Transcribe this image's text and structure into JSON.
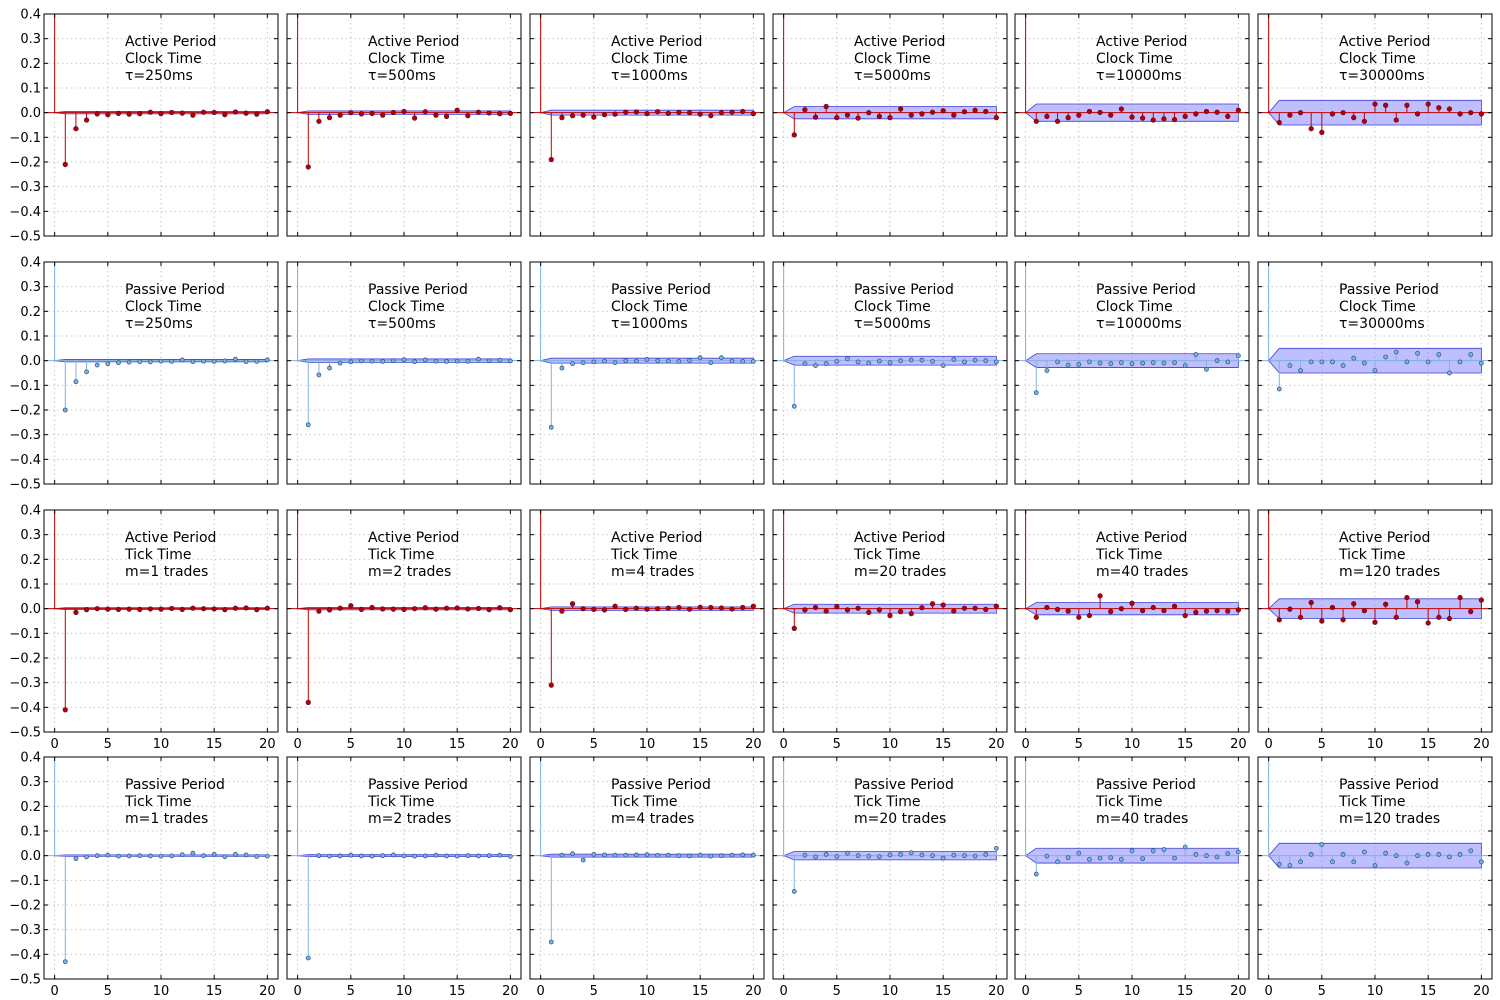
{
  "colors": {
    "active": "#c00000",
    "active_marker": "#b00010",
    "passive": "#7fb2e0",
    "passive_marker_edge": "#2f5f8f",
    "band_fill": "#8080ff",
    "band_edge": "#4040d0",
    "grid": "#c8c8c8",
    "frame": "#000000"
  },
  "chart_data": {
    "type": "stem",
    "layout": "4x6 grid of autocorrelation plots",
    "x_ticks": [
      "0",
      "5",
      "10",
      "15",
      "20"
    ],
    "y_ticks": [
      "0.4",
      "0.3",
      "0.2",
      "0.1",
      "0.0",
      "−0.1",
      "−0.2",
      "−0.3",
      "−0.4",
      "−0.5"
    ],
    "xlim": [
      -1,
      21
    ],
    "ylim": [
      -0.5,
      0.4
    ],
    "rows": [
      {
        "period": "Active",
        "color": "active",
        "panels": [
          {
            "lines": [
              "Active Period",
              "Clock Time",
              "τ=250ms"
            ],
            "band": 0.005,
            "values": [
              -0.21,
              -0.065,
              -0.03,
              -0.005,
              -0.008,
              -0.003,
              -0.006,
              -0.004,
              0.002,
              -0.004,
              0.001,
              -0.002,
              -0.01,
              0.002,
              0.001,
              -0.008,
              0.003,
              -0.002,
              -0.006,
              0.004
            ]
          },
          {
            "lines": [
              "Active Period",
              "Clock Time",
              "τ=500ms"
            ],
            "band": 0.007,
            "values": [
              -0.22,
              -0.035,
              -0.02,
              -0.01,
              0.0,
              -0.005,
              -0.003,
              -0.01,
              0.001,
              0.005,
              -0.022,
              0.004,
              -0.01,
              -0.015,
              0.01,
              -0.012,
              0.002,
              -0.001,
              -0.004,
              -0.003
            ]
          },
          {
            "lines": [
              "Active Period",
              "Clock Time",
              "τ=1000ms"
            ],
            "band": 0.01,
            "values": [
              -0.19,
              -0.02,
              -0.012,
              -0.01,
              -0.018,
              -0.008,
              -0.006,
              0.002,
              0.003,
              -0.004,
              0.004,
              -0.003,
              0.001,
              0.0,
              -0.006,
              -0.012,
              0.0,
              0.002,
              0.005,
              -0.004
            ]
          },
          {
            "lines": [
              "Active Period",
              "Clock Time",
              "τ=5000ms"
            ],
            "band": 0.025,
            "values": [
              -0.09,
              0.012,
              -0.018,
              0.025,
              -0.02,
              -0.01,
              -0.022,
              0.0,
              -0.015,
              -0.02,
              0.015,
              -0.01,
              -0.005,
              0.002,
              0.008,
              -0.01,
              0.004,
              0.01,
              0.005,
              -0.02
            ]
          },
          {
            "lines": [
              "Active Period",
              "Clock Time",
              "τ=10000ms"
            ],
            "band": 0.035,
            "values": [
              -0.035,
              -0.015,
              -0.035,
              -0.02,
              -0.01,
              0.005,
              0.001,
              -0.01,
              0.015,
              -0.018,
              -0.022,
              -0.03,
              -0.025,
              -0.028,
              -0.015,
              -0.005,
              0.005,
              0.002,
              -0.015,
              0.01
            ]
          },
          {
            "lines": [
              "Active Period",
              "Clock Time",
              "τ=30000ms"
            ],
            "band": 0.05,
            "values": [
              -0.04,
              -0.01,
              0.0,
              -0.065,
              -0.08,
              -0.005,
              0.0,
              -0.02,
              -0.035,
              0.035,
              0.03,
              -0.03,
              0.03,
              -0.005,
              0.035,
              0.02,
              0.015,
              -0.005,
              0.0,
              -0.005
            ]
          }
        ]
      },
      {
        "period": "Passive",
        "color": "passive",
        "panels": [
          {
            "lines": [
              "Passive Period",
              "Clock Time",
              "τ=250ms"
            ],
            "band": 0.005,
            "values": [
              -0.2,
              -0.085,
              -0.045,
              -0.018,
              -0.012,
              -0.008,
              -0.006,
              -0.004,
              -0.005,
              -0.002,
              -0.003,
              0.003,
              -0.004,
              -0.002,
              -0.003,
              -0.001,
              0.006,
              -0.004,
              -0.003,
              0.003
            ]
          },
          {
            "lines": [
              "Passive Period",
              "Clock Time",
              "τ=500ms"
            ],
            "band": 0.007,
            "values": [
              -0.26,
              -0.058,
              -0.03,
              -0.01,
              -0.005,
              -0.001,
              -0.002,
              -0.003,
              0.0,
              0.004,
              -0.004,
              0.003,
              -0.002,
              -0.003,
              -0.002,
              -0.003,
              0.006,
              0.0,
              0.002,
              -0.001
            ]
          },
          {
            "lines": [
              "Passive Period",
              "Clock Time",
              "τ=1000ms"
            ],
            "band": 0.01,
            "values": [
              -0.27,
              -0.03,
              -0.012,
              -0.008,
              -0.005,
              -0.002,
              -0.008,
              0.0,
              -0.002,
              0.005,
              0.0,
              -0.002,
              -0.003,
              0.001,
              0.012,
              -0.008,
              0.012,
              -0.002,
              -0.003,
              -0.003
            ]
          },
          {
            "lines": [
              "Passive Period",
              "Clock Time",
              "τ=5000ms"
            ],
            "band": 0.018,
            "values": [
              -0.185,
              -0.012,
              -0.02,
              -0.012,
              -0.003,
              0.008,
              -0.005,
              -0.01,
              -0.002,
              -0.008,
              0.0,
              0.003,
              0.002,
              -0.003,
              -0.02,
              0.005,
              -0.005,
              0.002,
              0.0,
              -0.005
            ]
          },
          {
            "lines": [
              "Passive Period",
              "Clock Time",
              "τ=10000ms"
            ],
            "band": 0.028,
            "values": [
              -0.13,
              -0.04,
              -0.005,
              -0.018,
              -0.015,
              -0.005,
              -0.01,
              -0.012,
              -0.008,
              -0.012,
              -0.01,
              -0.008,
              -0.01,
              -0.008,
              -0.02,
              0.025,
              -0.035,
              0.0,
              -0.005,
              0.02
            ]
          },
          {
            "lines": [
              "Passive Period",
              "Clock Time",
              "τ=30000ms"
            ],
            "band": 0.05,
            "values": [
              -0.115,
              -0.02,
              -0.04,
              -0.005,
              -0.005,
              -0.005,
              -0.02,
              0.01,
              -0.01,
              -0.04,
              0.015,
              0.035,
              -0.005,
              0.03,
              -0.005,
              0.025,
              -0.05,
              -0.005,
              0.025,
              -0.01
            ]
          }
        ]
      },
      {
        "period": "Active",
        "color": "active",
        "panels": [
          {
            "lines": [
              "Active Period",
              "Tick Time",
              "m=1 trades"
            ],
            "band": 0.004,
            "values": [
              -0.41,
              -0.015,
              -0.004,
              0.0,
              -0.002,
              -0.003,
              -0.002,
              -0.003,
              -0.001,
              -0.002,
              0.001,
              -0.003,
              0.002,
              0.0,
              -0.001,
              -0.004,
              0.002,
              0.003,
              -0.004,
              0.002
            ]
          },
          {
            "lines": [
              "Active Period",
              "Tick Time",
              "m=2 trades"
            ],
            "band": 0.005,
            "values": [
              -0.38,
              -0.01,
              -0.005,
              0.002,
              0.012,
              -0.003,
              0.005,
              -0.001,
              -0.002,
              -0.003,
              0.0,
              0.004,
              -0.002,
              0.002,
              0.003,
              -0.001,
              0.001,
              -0.004,
              0.004,
              -0.004
            ]
          },
          {
            "lines": [
              "Active Period",
              "Tick Time",
              "m=4 trades"
            ],
            "band": 0.007,
            "values": [
              -0.31,
              -0.01,
              0.02,
              0.0,
              -0.003,
              -0.005,
              0.01,
              -0.003,
              0.002,
              -0.002,
              0.0,
              0.002,
              0.005,
              -0.002,
              0.006,
              0.005,
              0.003,
              -0.001,
              0.005,
              0.01
            ]
          },
          {
            "lines": [
              "Active Period",
              "Tick Time",
              "m=20 trades"
            ],
            "band": 0.018,
            "values": [
              -0.08,
              -0.005,
              0.005,
              -0.01,
              0.008,
              -0.005,
              0.002,
              -0.015,
              -0.005,
              -0.028,
              -0.012,
              -0.02,
              0.004,
              0.02,
              0.015,
              -0.01,
              0.002,
              0.002,
              -0.003,
              0.01
            ]
          },
          {
            "lines": [
              "Active Period",
              "Tick Time",
              "m=40 trades"
            ],
            "band": 0.025,
            "values": [
              -0.035,
              0.005,
              -0.003,
              -0.01,
              -0.035,
              -0.028,
              0.052,
              -0.012,
              0.0,
              0.022,
              -0.008,
              0.005,
              -0.008,
              0.01,
              -0.028,
              -0.015,
              -0.01,
              -0.008,
              -0.01,
              -0.005
            ]
          },
          {
            "lines": [
              "Active Period",
              "Tick Time",
              "m=120 trades"
            ],
            "band": 0.04,
            "values": [
              -0.045,
              -0.002,
              -0.035,
              0.025,
              -0.05,
              0.005,
              -0.045,
              0.02,
              -0.008,
              -0.055,
              0.018,
              -0.035,
              0.045,
              0.028,
              -0.058,
              -0.035,
              -0.04,
              0.045,
              -0.012,
              0.035
            ]
          }
        ]
      },
      {
        "period": "Passive",
        "color": "passive",
        "panels": [
          {
            "lines": [
              "Passive Period",
              "Tick Time",
              "m=1 trades"
            ],
            "band": 0.003,
            "values": [
              -0.43,
              -0.012,
              -0.005,
              0.0,
              0.002,
              -0.002,
              -0.001,
              0.0,
              -0.001,
              -0.002,
              -0.001,
              0.004,
              0.01,
              0.0,
              0.005,
              -0.004,
              0.005,
              0.003,
              -0.003,
              -0.002
            ]
          },
          {
            "lines": [
              "Passive Period",
              "Tick Time",
              "m=2 trades"
            ],
            "band": 0.004,
            "values": [
              -0.415,
              0.0,
              -0.002,
              -0.001,
              0.002,
              -0.001,
              -0.002,
              0.0,
              0.003,
              -0.001,
              -0.002,
              -0.001,
              0.002,
              -0.001,
              -0.002,
              0.0,
              -0.001,
              0.0,
              0.002,
              -0.003
            ]
          },
          {
            "lines": [
              "Passive Period",
              "Tick Time",
              "m=4 trades"
            ],
            "band": 0.006,
            "values": [
              -0.35,
              0.002,
              0.008,
              -0.018,
              0.005,
              0.003,
              0.002,
              0.002,
              0.003,
              0.004,
              0.001,
              0.002,
              0.0,
              -0.001,
              0.002,
              -0.002,
              0.0,
              0.002,
              0.003,
              0.002
            ]
          },
          {
            "lines": [
              "Passive Period",
              "Tick Time",
              "m=20 trades"
            ],
            "band": 0.017,
            "values": [
              -0.145,
              0.002,
              -0.005,
              0.005,
              -0.003,
              0.01,
              0.0,
              -0.002,
              -0.004,
              0.003,
              0.005,
              0.012,
              0.003,
              0.0,
              -0.01,
              0.002,
              0.0,
              -0.002,
              0.005,
              0.03
            ]
          },
          {
            "lines": [
              "Passive Period",
              "Tick Time",
              "m=40 trades"
            ],
            "band": 0.03,
            "values": [
              -0.075,
              -0.002,
              -0.025,
              -0.008,
              0.01,
              -0.015,
              -0.01,
              -0.008,
              -0.015,
              0.02,
              -0.012,
              0.02,
              0.025,
              -0.01,
              0.035,
              0.005,
              0.0,
              -0.005,
              0.008,
              0.015
            ]
          },
          {
            "lines": [
              "Passive Period",
              "Tick Time",
              "m=120 trades"
            ],
            "band": 0.05,
            "values": [
              -0.035,
              -0.04,
              -0.025,
              0.005,
              0.045,
              -0.025,
              0.005,
              -0.025,
              0.015,
              -0.04,
              0.01,
              0.0,
              -0.03,
              0.0,
              0.005,
              0.005,
              -0.005,
              0.005,
              0.02,
              -0.025
            ]
          }
        ]
      }
    ]
  }
}
